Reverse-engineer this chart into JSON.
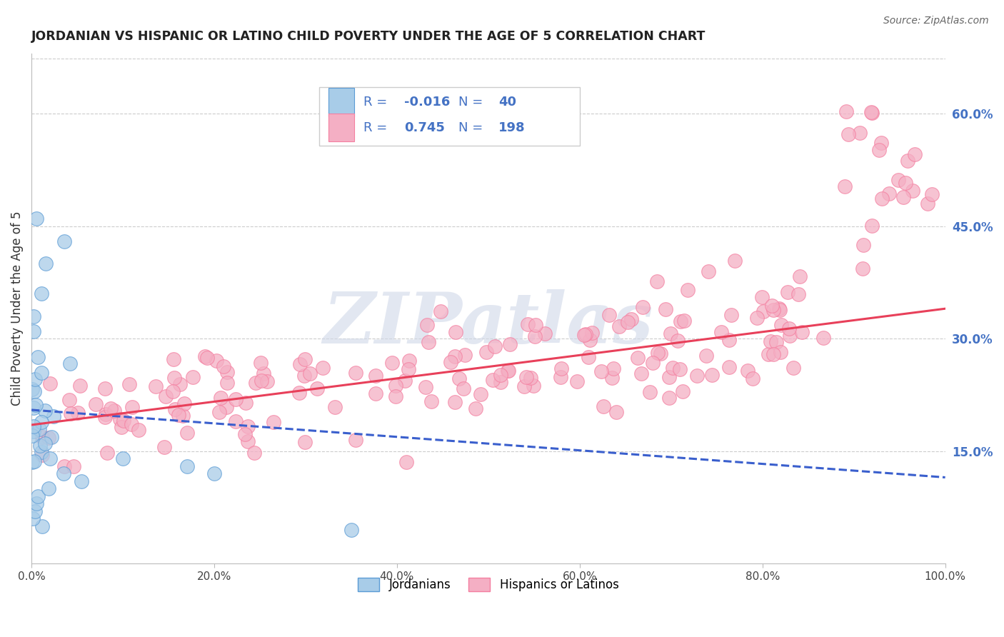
{
  "title": "JORDANIAN VS HISPANIC OR LATINO CHILD POVERTY UNDER THE AGE OF 5 CORRELATION CHART",
  "source": "Source: ZipAtlas.com",
  "ylabel": "Child Poverty Under the Age of 5",
  "xmin": 0.0,
  "xmax": 1.0,
  "ymin": 0.0,
  "ymax": 0.68,
  "right_yticks": [
    0.15,
    0.3,
    0.45,
    0.6
  ],
  "right_yticklabels": [
    "15.0%",
    "30.0%",
    "45.0%",
    "60.0%"
  ],
  "xticks": [
    0.0,
    0.2,
    0.4,
    0.6,
    0.8,
    1.0
  ],
  "xticklabels": [
    "0.0%",
    "20.0%",
    "40.0%",
    "60.0%",
    "80.0%",
    "100.0%"
  ],
  "blue_R": "-0.016",
  "blue_N": "40",
  "pink_R": "0.745",
  "pink_N": "198",
  "blue_color": "#a8cce8",
  "pink_color": "#f4afc4",
  "blue_edge_color": "#5b9bd5",
  "pink_edge_color": "#f47fa0",
  "trendline_blue_color": "#3a5fcd",
  "trendline_pink_color": "#e8405a",
  "legend_text_color": "#4472c4",
  "background_color": "#ffffff",
  "watermark": "ZIPatlas",
  "legend_label_blue": "Jordanians",
  "legend_label_pink": "Hispanics or Latinos"
}
